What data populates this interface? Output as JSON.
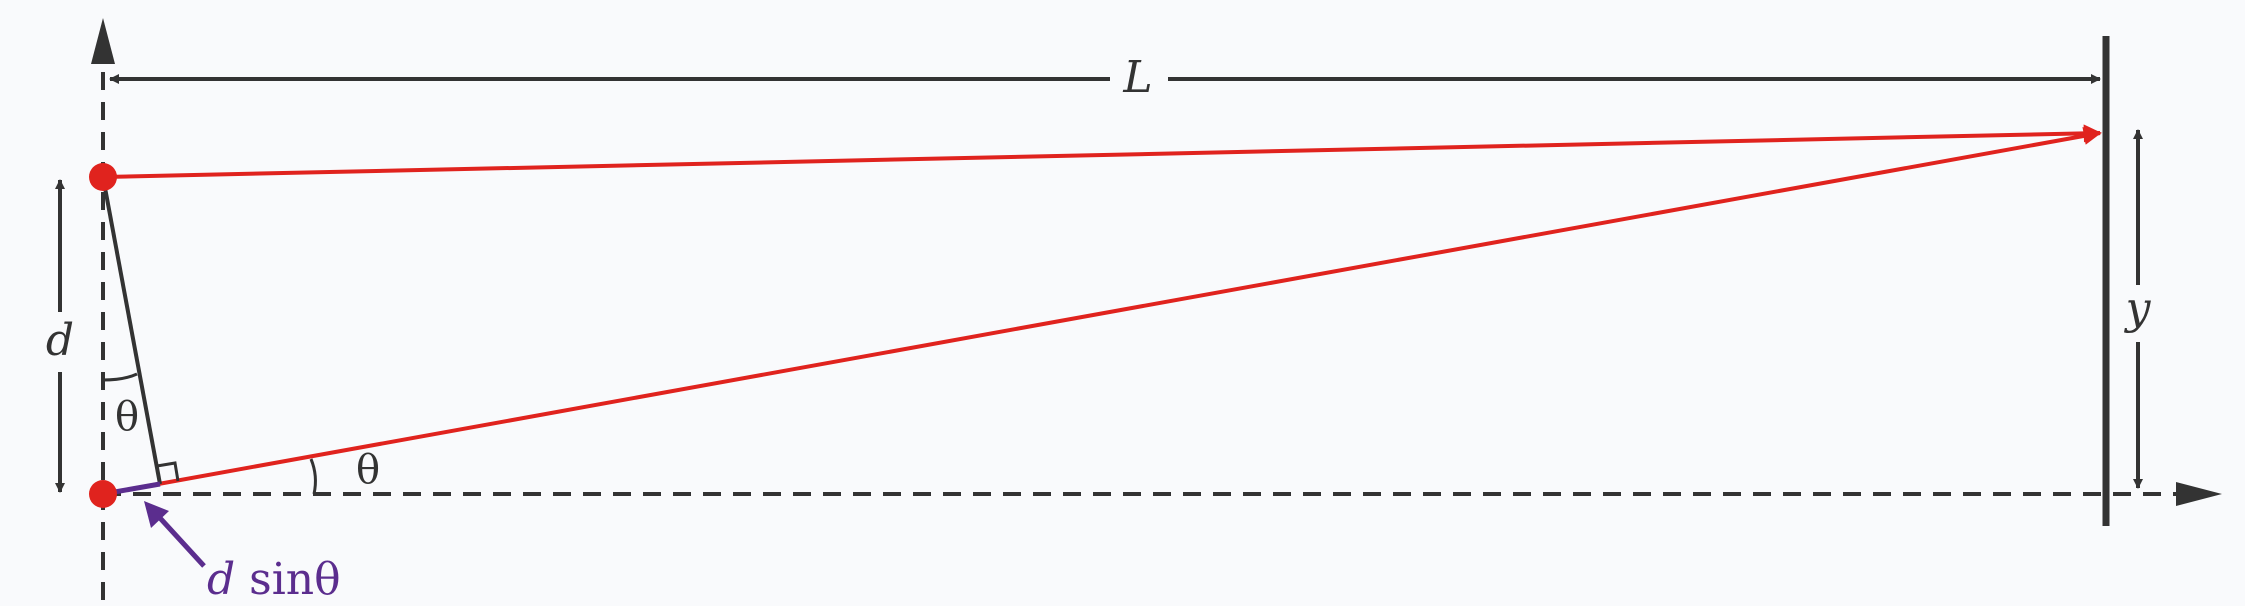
{
  "labels": {
    "L": "L",
    "d": "d",
    "y": "y",
    "theta_at_slit": "θ",
    "theta_at_base": "θ",
    "path_diff_var": "d",
    "path_diff_func": " sinθ"
  },
  "colors": {
    "background": "#f9fafc",
    "ink": "#333333",
    "ray": "#e0231e",
    "slit": "#e0231e",
    "path_difference": "#5b2d8e"
  }
}
